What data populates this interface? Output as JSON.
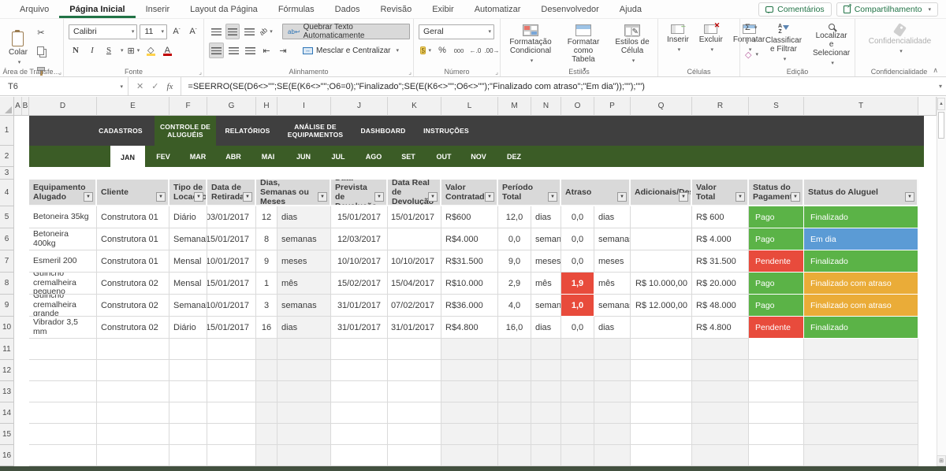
{
  "menu": {
    "tabs": [
      "Arquivo",
      "Página Inicial",
      "Inserir",
      "Layout da Página",
      "Fórmulas",
      "Dados",
      "Revisão",
      "Exibir",
      "Automatizar",
      "Desenvolvedor",
      "Ajuda"
    ],
    "active_tab": "Página Inicial",
    "comments_label": "Comentários",
    "share_label": "Compartilhamento"
  },
  "ribbon": {
    "paste_label": "Colar",
    "font_name": "Calibri",
    "font_size": "11",
    "bold": "N",
    "italic": "I",
    "underline": "S",
    "wrap_label": "Quebrar Texto Automaticamente",
    "merge_label": "Mesclar e Centralizar",
    "number_format": "Geral",
    "percent": "%",
    "thousands": "000",
    "dec_inc": "←.0",
    "dec_dec": ".00→",
    "cond_format_label": "Formatação Condicional",
    "format_table_label": "Formatar como Tabela",
    "cell_styles_label": "Estilos de Célula",
    "insert_label": "Inserir",
    "delete_label": "Excluir",
    "format_label": "Formatar",
    "autosum": "Σ",
    "sort_label": "Classificar e Filtrar",
    "find_label": "Localizar e Selecionar",
    "confidentiality_label": "Confidencialidade",
    "groups": {
      "clipboard": "Área de Transfe…",
      "font": "Fonte",
      "alignment": "Alinhamento",
      "number": "Número",
      "styles": "Estilos",
      "cells": "Células",
      "editing": "Edição",
      "confidentiality": "Confidencialidade"
    }
  },
  "formula_bar": {
    "name_box": "T6",
    "fx_label": "fx",
    "formula": "=SEERRO(SE(D6<>\"\";SE(E(K6<>\"\";O6=0);\"Finalizado\";SE(E(K6<>\"\";O6<>\"\");\"Finalizado com atraso\";\"Em dia\"));\"\");\"\")"
  },
  "sheet": {
    "columns": [
      "A",
      "B",
      "D",
      "E",
      "F",
      "G",
      "H",
      "I",
      "J",
      "K",
      "L",
      "M",
      "N",
      "O",
      "P",
      "Q",
      "R",
      "S",
      "T"
    ],
    "rows": [
      "1",
      "2",
      "3",
      "4",
      "5",
      "6",
      "7",
      "8",
      "9",
      "10",
      "11",
      "12",
      "13",
      "14",
      "15",
      "16"
    ],
    "nav_tabs": [
      {
        "label": "CADASTROS",
        "active": false
      },
      {
        "label": "CONTROLE DE ALUGUÉIS",
        "active": true
      },
      {
        "label": "RELATÓRIOS",
        "active": false
      },
      {
        "label": "ANÁLISE DE EQUIPAMENTOS",
        "active": false
      },
      {
        "label": "DASHBOARD",
        "active": false
      },
      {
        "label": "INSTRUÇÕES",
        "active": false
      }
    ],
    "month_tabs": [
      {
        "label": "JAN",
        "active": true
      },
      {
        "label": "FEV",
        "active": false
      },
      {
        "label": "MAR",
        "active": false
      },
      {
        "label": "ABR",
        "active": false
      },
      {
        "label": "MAI",
        "active": false
      },
      {
        "label": "JUN",
        "active": false
      },
      {
        "label": "JUL",
        "active": false
      },
      {
        "label": "AGO",
        "active": false
      },
      {
        "label": "SET",
        "active": false
      },
      {
        "label": "OUT",
        "active": false
      },
      {
        "label": "NOV",
        "active": false
      },
      {
        "label": "DEZ",
        "active": false
      }
    ]
  },
  "table": {
    "header_cells": [
      {
        "label": "Equipamento Alugado",
        "col": "D",
        "colEnd": "D"
      },
      {
        "label": "Cliente",
        "col": "E",
        "colEnd": "E"
      },
      {
        "label": "Tipo de Locação",
        "col": "F",
        "colEnd": "F"
      },
      {
        "label": "Data de Retirada",
        "col": "G",
        "colEnd": "G"
      },
      {
        "label": "Dias, Semanas ou Meses",
        "col": "H",
        "colEnd": "I"
      },
      {
        "label": "Data Prevista de Devolução",
        "col": "J",
        "colEnd": "J"
      },
      {
        "label": "Data Real de Devolução",
        "col": "K",
        "colEnd": "K"
      },
      {
        "label": "Valor Contratado",
        "col": "L",
        "colEnd": "L"
      },
      {
        "label": "Período Total",
        "col": "M",
        "colEnd": "N"
      },
      {
        "label": "Atraso",
        "col": "O",
        "colEnd": "P"
      },
      {
        "label": "Adicionais/Descontos",
        "col": "Q",
        "colEnd": "Q"
      },
      {
        "label": "Valor Total",
        "col": "R",
        "colEnd": "R"
      },
      {
        "label": "Status do Pagamento",
        "col": "S",
        "colEnd": "S"
      },
      {
        "label": "Status do Aluguel",
        "col": "T",
        "colEnd": "T"
      }
    ],
    "row_columns": [
      "D",
      "E",
      "F",
      "G",
      "H",
      "I",
      "J",
      "K",
      "L",
      "M",
      "N",
      "O",
      "P",
      "Q",
      "R",
      "S",
      "T"
    ],
    "rows": [
      {
        "row": "5",
        "atraso_alert": false,
        "cells": [
          "Betoneira 35kg",
          "Construtora 01",
          "Diário",
          "03/01/2017",
          "12",
          "dias",
          "15/01/2017",
          "15/01/2017",
          "R$600",
          "12,0",
          "dias",
          "0,0",
          "dias",
          "",
          "R$ 600",
          "Pago",
          "Finalizado"
        ]
      },
      {
        "row": "6",
        "atraso_alert": false,
        "cells": [
          "Betoneira 400kg",
          "Construtora 01",
          "Semanal",
          "15/01/2017",
          "8",
          "semanas",
          "12/03/2017",
          "",
          "R$4.000",
          "0,0",
          "semanas",
          "0,0",
          "semanas",
          "",
          "R$ 4.000",
          "Pago",
          "Em dia"
        ]
      },
      {
        "row": "7",
        "atraso_alert": false,
        "cells": [
          "Esmeril 200",
          "Construtora 01",
          "Mensal",
          "10/01/2017",
          "9",
          "meses",
          "10/10/2017",
          "10/10/2017",
          "R$31.500",
          "9,0",
          "meses",
          "0,0",
          "meses",
          "",
          "R$ 31.500",
          "Pendente",
          "Finalizado"
        ]
      },
      {
        "row": "8",
        "atraso_alert": true,
        "cells": [
          "Guincho cremalheira pequeno",
          "Construtora 02",
          "Mensal",
          "15/01/2017",
          "1",
          "mês",
          "15/02/2017",
          "15/04/2017",
          "R$10.000",
          "2,9",
          "mês",
          "1,9",
          "mês",
          "R$ 10.000,00",
          "R$ 20.000",
          "Pago",
          "Finalizado com atraso"
        ]
      },
      {
        "row": "9",
        "atraso_alert": true,
        "cells": [
          "Guincho cremalheira grande",
          "Construtora 02",
          "Semanal",
          "10/01/2017",
          "3",
          "semanas",
          "31/01/2017",
          "07/02/2017",
          "R$36.000",
          "4,0",
          "semanas",
          "1,0",
          "semanas",
          "R$ 12.000,00",
          "R$ 48.000",
          "Pago",
          "Finalizado com atraso"
        ]
      },
      {
        "row": "10",
        "atraso_alert": false,
        "cells": [
          "Vibrador 3,5 mm",
          "Construtora 02",
          "Diário",
          "15/01/2017",
          "16",
          "dias",
          "31/01/2017",
          "31/01/2017",
          "R$4.800",
          "16,0",
          "dias",
          "0,0",
          "dias",
          "",
          "R$ 4.800",
          "Pendente",
          "Finalizado"
        ]
      }
    ],
    "empty_rows": [
      "11",
      "12",
      "13",
      "14",
      "15",
      "16"
    ]
  },
  "status_colors": {
    "Pago": "#5BB347",
    "Pendente": "#E84B3C",
    "Finalizado": "#5BB347",
    "Em dia": "#5B9BD5",
    "Finalizado com atraso": "#EAAC38"
  },
  "colors": {
    "accent_green": "#217346",
    "band_dark": "#3F3F3F",
    "band_green": "#3B5C26",
    "header_fill": "#D9D9D9",
    "alert_red": "#E84B3C",
    "bottom_strip": "#42503F"
  }
}
